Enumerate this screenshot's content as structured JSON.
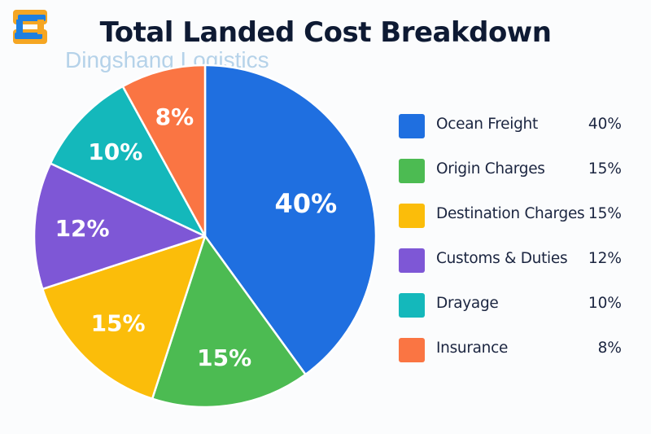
{
  "header": {
    "title": "Total Landed Cost Breakdown",
    "watermark": "Dingshang Logistics",
    "logo_name": "dingshang-logo"
  },
  "chart_data": {
    "type": "pie",
    "title": "Total Landed Cost Breakdown",
    "start_angle_deg": 0,
    "direction": "clockwise",
    "legend_position": "right",
    "slices": [
      {
        "label": "Ocean Freight",
        "value": 40,
        "display": "40%",
        "color": "#1f6fe0"
      },
      {
        "label": "Origin Charges",
        "value": 15,
        "display": "15%",
        "color": "#4cbb52"
      },
      {
        "label": "Destination Charges",
        "value": 15,
        "display": "15%",
        "color": "#fbbd0a"
      },
      {
        "label": "Customs & Duties",
        "value": 12,
        "display": "12%",
        "color": "#7e57d6"
      },
      {
        "label": "Drayage",
        "value": 10,
        "display": "10%",
        "color": "#14b8bb"
      },
      {
        "label": "Insurance",
        "value": 8,
        "display": "8%",
        "color": "#fa7543"
      }
    ]
  }
}
